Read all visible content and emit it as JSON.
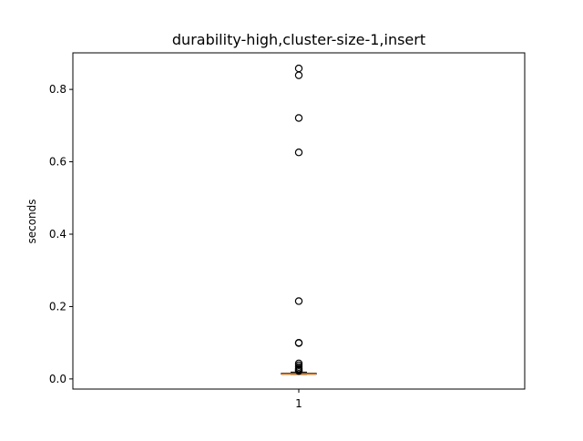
{
  "chart_data": {
    "type": "boxplot",
    "title": "durability-high,cluster-size-1,insert",
    "xlabel": "",
    "ylabel": "seconds",
    "categories": [
      "1"
    ],
    "ylim": [
      -0.028,
      0.901
    ],
    "yticks": [
      {
        "value": 0.0,
        "label": "0.0"
      },
      {
        "value": 0.2,
        "label": "0.2"
      },
      {
        "value": 0.4,
        "label": "0.4"
      },
      {
        "value": 0.6,
        "label": "0.6"
      },
      {
        "value": 0.8,
        "label": "0.8"
      }
    ],
    "grid": false,
    "series": [
      {
        "whisker_low": 0.012,
        "q1": 0.013,
        "median": 0.0135,
        "q3": 0.016,
        "whisker_high": 0.019,
        "outliers": [
          0.858,
          0.839,
          0.721,
          0.626,
          0.215,
          0.1,
          0.099,
          0.043,
          0.038,
          0.033,
          0.029,
          0.026,
          0.024,
          0.022
        ]
      }
    ],
    "colors": {
      "median": "#d4843a",
      "box": "#000000",
      "outlier": "#000000"
    }
  }
}
